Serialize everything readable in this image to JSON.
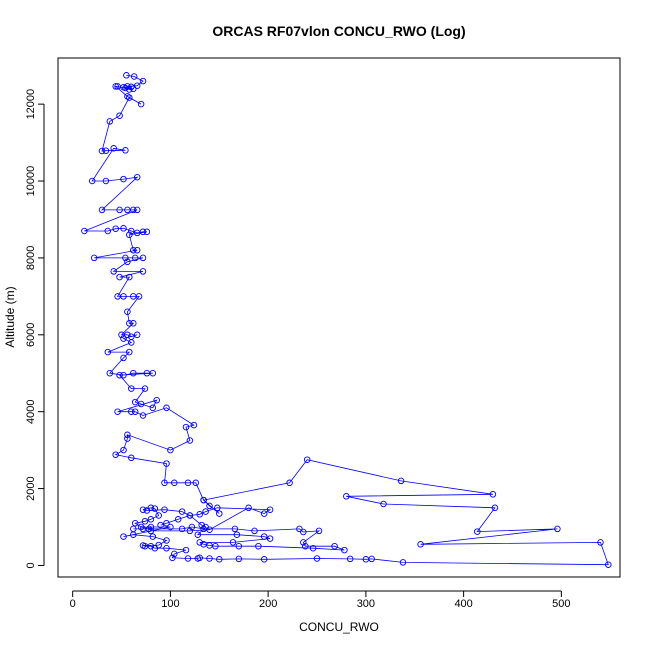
{
  "chart_data": {
    "type": "line",
    "title": "ORCAS RF07vlon CONCU_RWO (Log)",
    "xlabel": "CONCU_RWO",
    "ylabel": "Altitude (m)",
    "xlim": [
      -15,
      560
    ],
    "ylim": [
      -300,
      13200
    ],
    "xticks": [
      0,
      100,
      200,
      300,
      400,
      500
    ],
    "yticks": [
      0,
      2000,
      4000,
      6000,
      8000,
      10000,
      12000
    ],
    "grid": false,
    "marker": "open-circle",
    "color": "#0000ff",
    "series": [
      {
        "points": [
          [
            55,
            12750
          ],
          [
            63,
            12720
          ],
          [
            72,
            12600
          ],
          [
            66,
            12480
          ],
          [
            56,
            12460
          ],
          [
            60,
            12450
          ],
          [
            52,
            12440
          ],
          [
            54,
            12420
          ],
          [
            62,
            12400
          ],
          [
            58,
            12380
          ],
          [
            46,
            12460
          ],
          [
            44,
            12460
          ],
          [
            56,
            12200
          ],
          [
            70,
            12000
          ],
          [
            58,
            12170
          ],
          [
            48,
            11700
          ],
          [
            38,
            11550
          ],
          [
            30,
            10780
          ],
          [
            34,
            10790
          ],
          [
            54,
            10800
          ],
          [
            42,
            10850
          ],
          [
            20,
            10000
          ],
          [
            34,
            10000
          ],
          [
            52,
            10050
          ],
          [
            66,
            10100
          ],
          [
            30,
            9250
          ],
          [
            48,
            9250
          ],
          [
            56,
            9250
          ],
          [
            62,
            9250
          ],
          [
            66,
            9250
          ],
          [
            12,
            8700
          ],
          [
            36,
            8700
          ],
          [
            44,
            8760
          ],
          [
            52,
            8770
          ],
          [
            60,
            8700
          ],
          [
            66,
            8650
          ],
          [
            72,
            8680
          ],
          [
            76,
            8680
          ],
          [
            58,
            8600
          ],
          [
            62,
            8200
          ],
          [
            66,
            8200
          ],
          [
            22,
            8000
          ],
          [
            54,
            8000
          ],
          [
            64,
            8000
          ],
          [
            72,
            8000
          ],
          [
            56,
            7900
          ],
          [
            42,
            7650
          ],
          [
            72,
            7650
          ],
          [
            48,
            7500
          ],
          [
            58,
            7500
          ],
          [
            46,
            7000
          ],
          [
            52,
            7000
          ],
          [
            62,
            7000
          ],
          [
            68,
            7000
          ],
          [
            56,
            6600
          ],
          [
            58,
            6300
          ],
          [
            62,
            6300
          ],
          [
            50,
            6000
          ],
          [
            56,
            6000
          ],
          [
            60,
            5950
          ],
          [
            66,
            6000
          ],
          [
            52,
            5900
          ],
          [
            60,
            5800
          ],
          [
            36,
            5550
          ],
          [
            58,
            5550
          ],
          [
            52,
            5400
          ],
          [
            38,
            5000
          ],
          [
            52,
            4950
          ],
          [
            62,
            5000
          ],
          [
            76,
            5000
          ],
          [
            82,
            5000
          ],
          [
            48,
            4950
          ],
          [
            60,
            4600
          ],
          [
            74,
            4600
          ],
          [
            64,
            4250
          ],
          [
            70,
            4200
          ],
          [
            82,
            4100
          ],
          [
            86,
            4300
          ],
          [
            46,
            4000
          ],
          [
            60,
            4000
          ],
          [
            64,
            4000
          ],
          [
            72,
            3900
          ],
          [
            96,
            4100
          ],
          [
            124,
            3650
          ],
          [
            116,
            3600
          ],
          [
            120,
            3250
          ],
          [
            100,
            3000
          ],
          [
            56,
            3400
          ],
          [
            56,
            3300
          ],
          [
            52,
            3000
          ],
          [
            44,
            2880
          ],
          [
            60,
            2800
          ],
          [
            96,
            2650
          ],
          [
            94,
            2150
          ],
          [
            104,
            2150
          ],
          [
            118,
            2150
          ],
          [
            126,
            2150
          ],
          [
            134,
            1700
          ],
          [
            140,
            1550
          ],
          [
            150,
            1350
          ],
          [
            134,
            1700
          ],
          [
            222,
            2150
          ],
          [
            240,
            2750
          ],
          [
            336,
            2200
          ],
          [
            430,
            1850
          ],
          [
            280,
            1800
          ],
          [
            318,
            1600
          ],
          [
            432,
            1500
          ],
          [
            414,
            880
          ],
          [
            496,
            950
          ],
          [
            356,
            550
          ],
          [
            540,
            600
          ],
          [
            548,
            20
          ],
          [
            338,
            80
          ],
          [
            306,
            170
          ],
          [
            300,
            160
          ],
          [
            284,
            170
          ],
          [
            250,
            180
          ],
          [
            196,
            160
          ],
          [
            170,
            170
          ],
          [
            150,
            160
          ],
          [
            140,
            180
          ],
          [
            130,
            200
          ],
          [
            128,
            180
          ],
          [
            118,
            180
          ],
          [
            102,
            200
          ],
          [
            104,
            300
          ],
          [
            116,
            400
          ],
          [
            96,
            450
          ],
          [
            84,
            450
          ],
          [
            80,
            500
          ],
          [
            74,
            500
          ],
          [
            72,
            520
          ],
          [
            88,
            530
          ],
          [
            96,
            650
          ],
          [
            82,
            750
          ],
          [
            62,
            800
          ],
          [
            52,
            750
          ],
          [
            100,
            1000
          ],
          [
            80,
            1000
          ],
          [
            72,
            950
          ],
          [
            62,
            950
          ],
          [
            112,
            950
          ],
          [
            122,
            1000
          ],
          [
            134,
            950
          ],
          [
            166,
            950
          ],
          [
            186,
            900
          ],
          [
            232,
            950
          ],
          [
            236,
            870
          ],
          [
            252,
            900
          ],
          [
            236,
            600
          ],
          [
            238,
            500
          ],
          [
            268,
            500
          ],
          [
            278,
            400
          ],
          [
            246,
            450
          ],
          [
            190,
            500
          ],
          [
            170,
            500
          ],
          [
            146,
            500
          ],
          [
            140,
            520
          ],
          [
            134,
            550
          ],
          [
            130,
            600
          ],
          [
            164,
            600
          ],
          [
            202,
            700
          ],
          [
            196,
            750
          ],
          [
            168,
            800
          ],
          [
            128,
            800
          ],
          [
            136,
            1000
          ],
          [
            132,
            1050
          ],
          [
            120,
            1300
          ],
          [
            112,
            1400
          ],
          [
            94,
            1450
          ],
          [
            76,
            1430
          ],
          [
            72,
            1450
          ],
          [
            80,
            1500
          ],
          [
            84,
            1480
          ],
          [
            88,
            1300
          ],
          [
            80,
            1200
          ],
          [
            74,
            1150
          ],
          [
            64,
            1100
          ],
          [
            70,
            1000
          ],
          [
            78,
            950
          ],
          [
            80,
            900
          ],
          [
            120,
            900
          ],
          [
            140,
            930
          ],
          [
            180,
            1500
          ],
          [
            196,
            1350
          ],
          [
            202,
            1450
          ],
          [
            148,
            1500
          ],
          [
            136,
            1400
          ],
          [
            130,
            1330
          ],
          [
            120,
            1300
          ],
          [
            108,
            1200
          ],
          [
            96,
            1100
          ],
          [
            90,
            1050
          ]
        ]
      }
    ]
  }
}
